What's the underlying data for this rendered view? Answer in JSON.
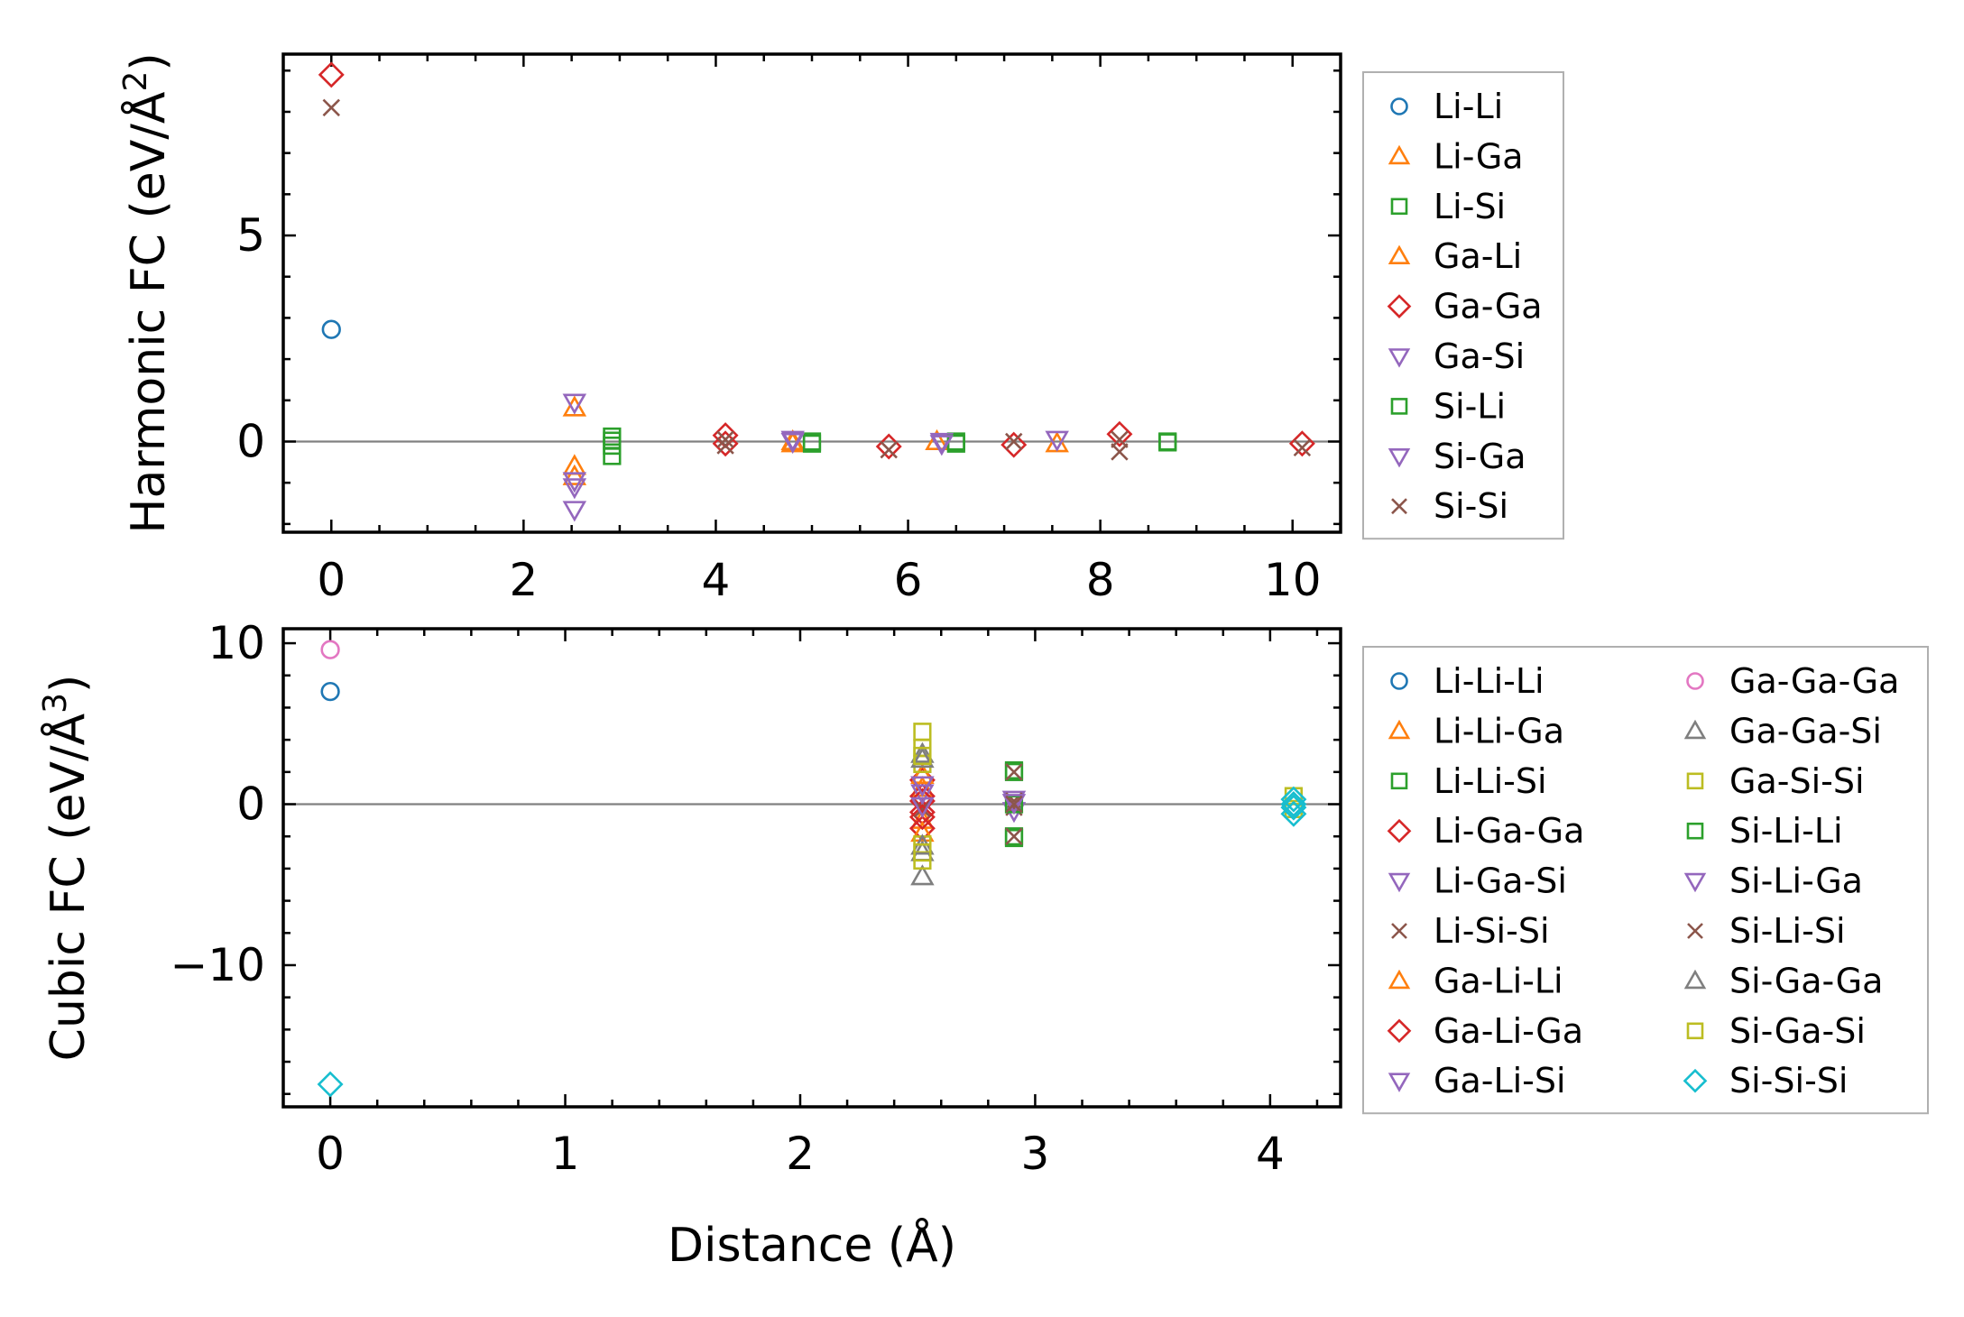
{
  "colors": {
    "blue": "#1f77b4",
    "orange": "#ff7f0e",
    "green": "#2ca02c",
    "red": "#d62728",
    "purple": "#9467bd",
    "brown": "#8c564b",
    "pink": "#e377c2",
    "gray": "#7f7f7f",
    "olive": "#bcbd22",
    "cyan": "#17becf"
  },
  "chart_data": [
    {
      "type": "scatter",
      "id": "harmonic",
      "title": "",
      "xlabel": "",
      "ylabel": "Harmonic FC (eV/Å",
      "ylabel_exp": "2",
      "ylabel_end": ")",
      "xlim": [
        -0.5,
        10.5
      ],
      "ylim": [
        -2.2,
        9.4
      ],
      "xticks": [
        0,
        2,
        4,
        6,
        8,
        10
      ],
      "xtick_labels": [
        "0",
        "2",
        "4",
        "6",
        "8",
        "10"
      ],
      "yticks": [
        0,
        5
      ],
      "ytick_labels": [
        "0",
        "5"
      ],
      "zero_line": true,
      "legend_position": "outside-right",
      "series": [
        {
          "name": "Li-Li",
          "marker": "circle",
          "color": "blue",
          "points": [
            [
              0,
              2.72
            ]
          ]
        },
        {
          "name": "Li-Ga",
          "marker": "triangle-up",
          "color": "orange",
          "points": [
            [
              2.53,
              -0.6
            ],
            [
              2.53,
              0.82
            ],
            [
              4.8,
              0.0
            ],
            [
              6.3,
              0.0
            ],
            [
              7.55,
              -0.05
            ]
          ]
        },
        {
          "name": "Li-Si",
          "marker": "square",
          "color": "green",
          "points": [
            [
              2.92,
              0.12
            ],
            [
              2.92,
              -0.1
            ],
            [
              2.92,
              -0.35
            ],
            [
              5.0,
              0.0
            ],
            [
              6.5,
              0.0
            ],
            [
              8.7,
              0.0
            ]
          ]
        },
        {
          "name": "Ga-Li",
          "marker": "triangle-up",
          "color": "orange",
          "points": [
            [
              2.53,
              -0.85
            ],
            [
              4.8,
              -0.05
            ]
          ]
        },
        {
          "name": "Ga-Ga",
          "marker": "diamond",
          "color": "red",
          "points": [
            [
              0,
              8.9
            ],
            [
              4.1,
              0.15
            ],
            [
              4.1,
              -0.05
            ],
            [
              5.8,
              -0.12
            ],
            [
              7.1,
              -0.08
            ],
            [
              8.2,
              0.18
            ],
            [
              10.1,
              -0.05
            ]
          ]
        },
        {
          "name": "Ga-Si",
          "marker": "triangle-down",
          "color": "purple",
          "points": [
            [
              2.53,
              0.95
            ],
            [
              2.53,
              -1.1
            ],
            [
              2.53,
              -1.65
            ],
            [
              4.8,
              0.05
            ],
            [
              6.35,
              0.0
            ],
            [
              7.55,
              0.05
            ]
          ]
        },
        {
          "name": "Si-Li",
          "marker": "square",
          "color": "green",
          "points": [
            [
              2.92,
              0.02
            ],
            [
              5.0,
              -0.05
            ],
            [
              6.5,
              -0.05
            ],
            [
              8.7,
              -0.02
            ]
          ]
        },
        {
          "name": "Si-Ga",
          "marker": "triangle-down",
          "color": "purple",
          "points": [
            [
              2.53,
              -0.95
            ],
            [
              4.8,
              0.0
            ],
            [
              6.35,
              -0.05
            ]
          ]
        },
        {
          "name": "Si-Si",
          "marker": "x",
          "color": "brown",
          "points": [
            [
              0,
              8.1
            ],
            [
              4.1,
              0.05
            ],
            [
              4.1,
              -0.1
            ],
            [
              5.8,
              -0.2
            ],
            [
              7.1,
              0.0
            ],
            [
              8.2,
              -0.25
            ],
            [
              8.2,
              0.05
            ],
            [
              10.1,
              -0.15
            ]
          ]
        }
      ]
    },
    {
      "type": "scatter",
      "id": "cubic",
      "title": "",
      "xlabel": "Distance (Å)",
      "ylabel": "Cubic FC (eV/Å",
      "ylabel_exp": "3",
      "ylabel_end": ")",
      "xlim": [
        -0.2,
        4.3
      ],
      "ylim": [
        -18.8,
        10.9
      ],
      "xticks": [
        0,
        1,
        2,
        3,
        4
      ],
      "xtick_labels": [
        "0",
        "1",
        "2",
        "3",
        "4"
      ],
      "yticks": [
        10,
        0,
        -10
      ],
      "ytick_labels": [
        "10",
        "0",
        "−10"
      ],
      "zero_line": true,
      "legend_position": "outside-right",
      "series": [
        {
          "name": "Li-Li-Li",
          "marker": "circle",
          "color": "blue",
          "points": [
            [
              0,
              7.0
            ]
          ]
        },
        {
          "name": "Li-Li-Ga",
          "marker": "triangle-up",
          "color": "orange",
          "points": [
            [
              2.52,
              1.0
            ],
            [
              2.52,
              -1.0
            ]
          ]
        },
        {
          "name": "Li-Li-Si",
          "marker": "square",
          "color": "green",
          "points": [
            [
              2.91,
              2.0
            ],
            [
              2.91,
              -2.0
            ]
          ]
        },
        {
          "name": "Li-Ga-Ga",
          "marker": "diamond",
          "color": "red",
          "points": [
            [
              2.52,
              1.5
            ],
            [
              2.52,
              0.5
            ],
            [
              2.52,
              -0.5
            ],
            [
              2.52,
              -1.5
            ]
          ]
        },
        {
          "name": "Li-Ga-Si",
          "marker": "triangle-down",
          "color": "purple",
          "points": [
            [
              2.52,
              0.7
            ],
            [
              2.91,
              0.3
            ]
          ]
        },
        {
          "name": "Li-Si-Si",
          "marker": "x",
          "color": "brown",
          "points": [
            [
              2.52,
              -0.3
            ],
            [
              2.91,
              0.2
            ],
            [
              2.91,
              -0.2
            ]
          ]
        },
        {
          "name": "Ga-Li-Li",
          "marker": "triangle-up",
          "color": "orange",
          "points": [
            [
              2.52,
              1.8
            ],
            [
              2.52,
              -1.8
            ]
          ]
        },
        {
          "name": "Ga-Li-Ga",
          "marker": "diamond",
          "color": "red",
          "points": [
            [
              2.52,
              0.2
            ],
            [
              2.52,
              -0.8
            ]
          ]
        },
        {
          "name": "Ga-Li-Si",
          "marker": "triangle-down",
          "color": "purple",
          "points": [
            [
              2.52,
              1.2
            ],
            [
              2.91,
              -0.4
            ]
          ]
        },
        {
          "name": "Ga-Ga-Ga",
          "marker": "circle",
          "color": "pink",
          "points": [
            [
              0,
              9.6
            ]
          ]
        },
        {
          "name": "Ga-Ga-Si",
          "marker": "triangle-up",
          "color": "gray",
          "points": [
            [
              2.52,
              3.1
            ],
            [
              2.52,
              -3.0
            ],
            [
              2.52,
              -4.5
            ]
          ]
        },
        {
          "name": "Ga-Si-Si",
          "marker": "square",
          "color": "olive",
          "points": [
            [
              2.52,
              4.5
            ],
            [
              2.52,
              3.5
            ],
            [
              2.52,
              2.5
            ],
            [
              2.52,
              -2.5
            ],
            [
              2.52,
              -3.5
            ],
            [
              4.1,
              0.5
            ]
          ]
        },
        {
          "name": "Si-Li-Li",
          "marker": "square",
          "color": "green",
          "points": [
            [
              2.91,
              2.1
            ],
            [
              2.91,
              -2.1
            ],
            [
              2.91,
              0.0
            ]
          ]
        },
        {
          "name": "Si-Li-Ga",
          "marker": "triangle-down",
          "color": "purple",
          "points": [
            [
              2.91,
              0.1
            ],
            [
              2.52,
              -0.1
            ]
          ]
        },
        {
          "name": "Si-Li-Si",
          "marker": "x",
          "color": "brown",
          "points": [
            [
              2.91,
              2.0
            ],
            [
              2.91,
              -2.0
            ],
            [
              2.91,
              0.0
            ]
          ]
        },
        {
          "name": "Si-Ga-Ga",
          "marker": "triangle-up",
          "color": "gray",
          "points": [
            [
              2.52,
              2.8
            ],
            [
              2.52,
              -2.6
            ]
          ]
        },
        {
          "name": "Si-Ga-Si",
          "marker": "square",
          "color": "olive",
          "points": [
            [
              2.52,
              3.0
            ],
            [
              2.52,
              -3.0
            ],
            [
              4.1,
              -0.3
            ]
          ]
        },
        {
          "name": "Si-Si-Si",
          "marker": "diamond",
          "color": "cyan",
          "points": [
            [
              0,
              -17.4
            ],
            [
              4.1,
              0.3
            ],
            [
              4.1,
              -0.2
            ],
            [
              4.1,
              -0.6
            ],
            [
              4.1,
              0.0
            ]
          ]
        }
      ]
    }
  ]
}
